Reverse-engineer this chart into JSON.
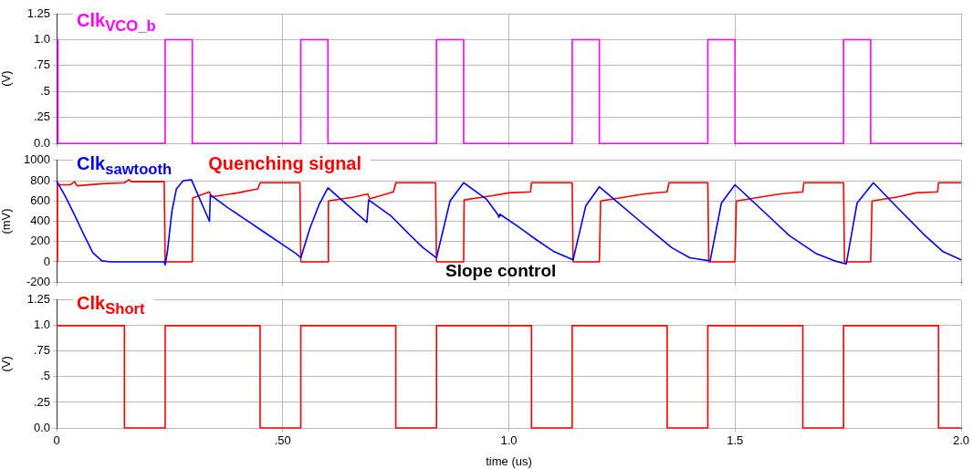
{
  "chart_data": [
    {
      "type": "step",
      "ylabel": "(V)",
      "xlim": [
        0,
        2.0
      ],
      "xticks": [
        {
          "value": 0,
          "label": null
        },
        {
          "value": 0.5,
          "label": null
        },
        {
          "value": 1,
          "label": null
        },
        {
          "value": 1.5,
          "label": null
        },
        {
          "value": 2,
          "label": null
        }
      ],
      "ylim": [
        0,
        1.25
      ],
      "yticks": [
        {
          "value": 0,
          "label": "0.0"
        },
        {
          "value": 0.25,
          "label": ".25"
        },
        {
          "value": 0.5,
          "label": ".5"
        },
        {
          "value": 0.75,
          "label": ".75"
        },
        {
          "value": 1,
          "label": "1.0"
        },
        {
          "value": 1.25,
          "label": "1.25"
        }
      ],
      "tick_labels": "y",
      "grid": true,
      "series": [
        {
          "name": "Clk$_{VCO_b}$",
          "color": "#ff00ff",
          "x": [
            0,
            0.003,
            0.24,
            0.3,
            0.54,
            0.6,
            0.84,
            0.9,
            1.14,
            1.2,
            1.44,
            1.5,
            1.74,
            1.8,
            2.0
          ],
          "values": [
            1,
            0,
            1,
            0,
            1,
            0,
            1,
            0,
            1,
            0,
            1,
            0,
            1,
            0,
            0
          ]
        }
      ]
    },
    {
      "type": "line",
      "ylabel": "(mV)",
      "xlim": [
        0,
        2.0
      ],
      "xticks": [
        {
          "value": 0,
          "label": null
        },
        {
          "value": 0.5,
          "label": null
        },
        {
          "value": 1,
          "label": null
        },
        {
          "value": 1.5,
          "label": null
        },
        {
          "value": 2,
          "label": null
        }
      ],
      "ylim": [
        -200,
        1000
      ],
      "yticks": [
        -200,
        0,
        200,
        400,
        600,
        800,
        1000
      ],
      "tick_labels": "y",
      "grid": true,
      "annotations": [
        "Slope control"
      ],
      "series": [
        {
          "name": "Clk$_{sawtooth}$",
          "color": "#0000ff",
          "x": [
            0,
            0.02,
            0.04,
            0.06,
            0.08,
            0.1,
            0.12,
            0.238,
            0.24,
            0.245,
            0.255,
            0.265,
            0.28,
            0.298,
            0.338,
            0.34,
            0.38,
            0.42,
            0.46,
            0.5,
            0.53,
            0.54,
            0.56,
            0.58,
            0.6,
            0.686,
            0.69,
            0.74,
            0.78,
            0.81,
            0.84,
            0.87,
            0.9,
            0.95,
            0.975,
            0.978,
            0.98,
            1.02,
            1.06,
            1.1,
            1.142,
            1.17,
            1.2,
            1.29,
            1.36,
            1.4,
            1.445,
            1.47,
            1.5,
            1.56,
            1.62,
            1.68,
            1.72,
            1.746,
            1.77,
            1.806,
            1.86,
            1.92,
            1.96,
            2.0
          ],
          "values": [
            800,
            640,
            460,
            270,
            90,
            10,
            0,
            0,
            -30,
            100,
            500,
            720,
            800,
            810,
            400,
            660,
            530,
            410,
            290,
            170,
            80,
            40,
            330,
            560,
            730,
            390,
            610,
            450,
            270,
            140,
            40,
            600,
            780,
            620,
            470,
            440,
            470,
            350,
            220,
            100,
            20,
            550,
            740,
            400,
            140,
            40,
            10,
            580,
            760,
            510,
            260,
            80,
            10,
            -20,
            580,
            780,
            530,
            260,
            100,
            20
          ]
        },
        {
          "name": "Quenching signal",
          "color": "#ff0000",
          "x": [
            0,
            0.002,
            0.03,
            0.04,
            0.045,
            0.1,
            0.15,
            0.16,
            0.165,
            0.238,
            0.24,
            0.3,
            0.301,
            0.338,
            0.342,
            0.4,
            0.445,
            0.45,
            0.538,
            0.54,
            0.6,
            0.601,
            0.66,
            0.688,
            0.692,
            0.745,
            0.75,
            0.838,
            0.84,
            0.9,
            0.901,
            0.96,
            1.0,
            1.048,
            1.05,
            1.14,
            1.142,
            1.2,
            1.203,
            1.26,
            1.3,
            1.35,
            1.354,
            1.44,
            1.442,
            1.5,
            1.503,
            1.56,
            1.6,
            1.65,
            1.652,
            1.74,
            1.742,
            1.8,
            1.803,
            1.86,
            1.9,
            1.948,
            1.95,
            2.0
          ],
          "values": [
            0,
            760,
            760,
            790,
            750,
            770,
            780,
            810,
            790,
            790,
            0,
            0,
            630,
            690,
            640,
            680,
            720,
            780,
            780,
            0,
            0,
            600,
            640,
            670,
            620,
            690,
            780,
            780,
            0,
            0,
            610,
            650,
            680,
            690,
            780,
            780,
            0,
            0,
            600,
            640,
            670,
            690,
            780,
            780,
            0,
            0,
            600,
            640,
            670,
            690,
            780,
            780,
            0,
            0,
            600,
            640,
            680,
            690,
            780,
            780
          ]
        }
      ]
    },
    {
      "type": "step",
      "ylabel": "(V)",
      "xlabel": "time (us)",
      "xlim": [
        0,
        2.0
      ],
      "xticks": [
        {
          "value": 0,
          "label": "0"
        },
        {
          "value": 0.5,
          "label": ".50"
        },
        {
          "value": 1,
          "label": "1.0"
        },
        {
          "value": 1.5,
          "label": "1.5"
        },
        {
          "value": 2,
          "label": "2.0"
        }
      ],
      "ylim": [
        0,
        1.25
      ],
      "yticks": [
        {
          "value": 0,
          "label": "0.0"
        },
        {
          "value": 0.25,
          "label": ".25"
        },
        {
          "value": 0.5,
          "label": ".5"
        },
        {
          "value": 0.75,
          "label": ".75"
        },
        {
          "value": 1,
          "label": "1.0"
        },
        {
          "value": 1.25,
          "label": "1.25"
        }
      ],
      "grid": true,
      "series": [
        {
          "name": "Clk$_{Short}$",
          "color": "#ff0000",
          "x": [
            0,
            0.15,
            0.24,
            0.45,
            0.54,
            0.75,
            0.84,
            1.05,
            1.14,
            1.35,
            1.44,
            1.65,
            1.74,
            1.95,
            2.0
          ],
          "values": [
            1,
            0,
            1,
            0,
            1,
            0,
            1,
            0,
            1,
            0,
            1,
            0,
            1,
            0,
            0
          ]
        }
      ]
    }
  ]
}
